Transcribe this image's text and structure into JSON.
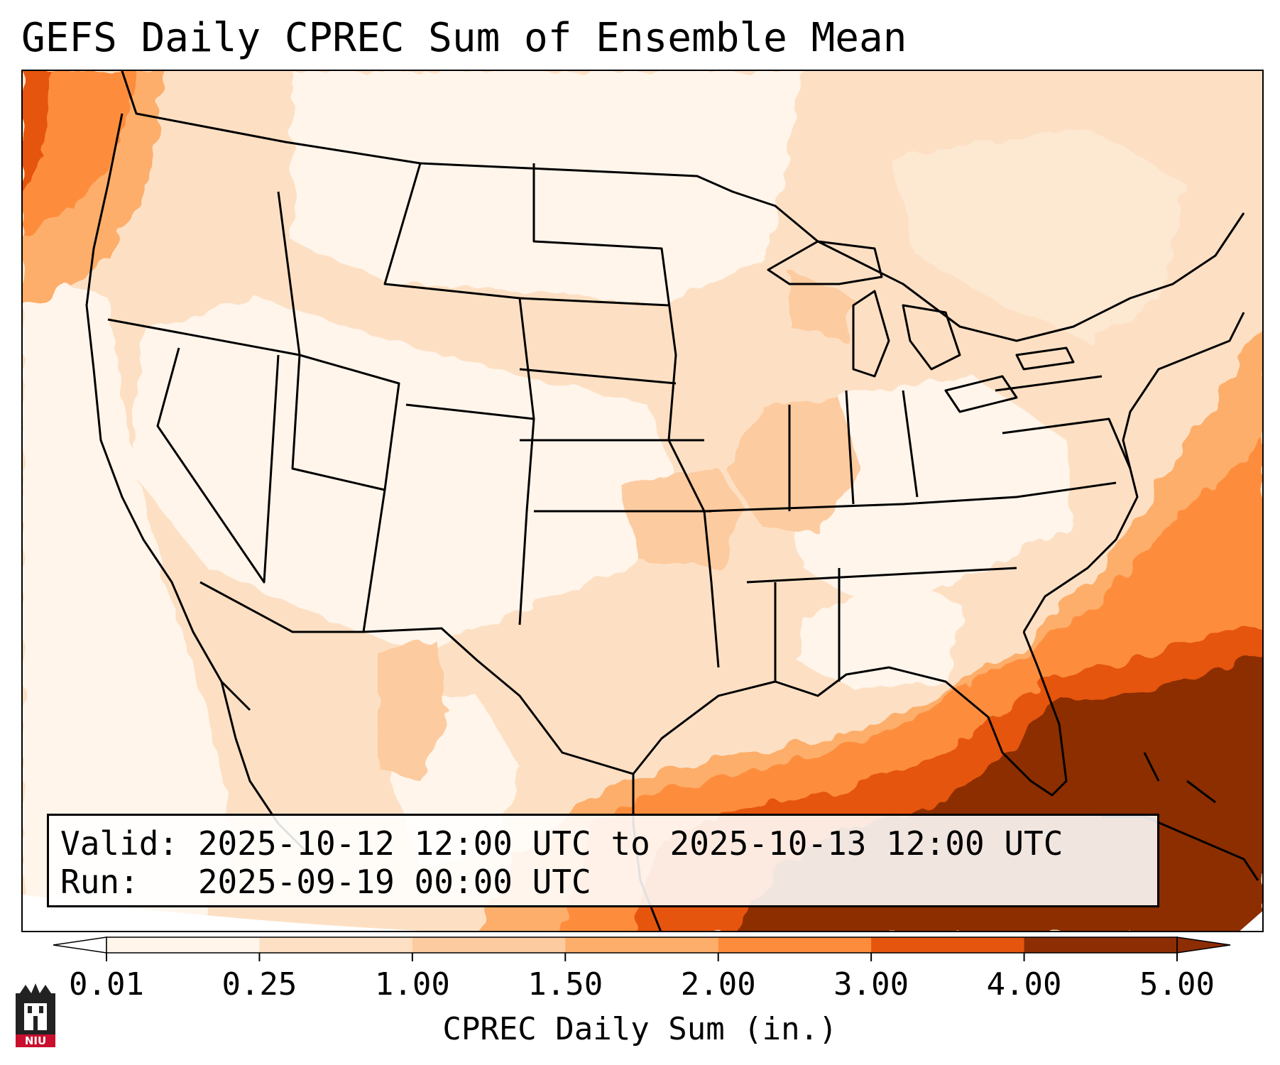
{
  "title": "GEFS Daily CPREC Sum of Ensemble Mean",
  "info": {
    "valid": "Valid: 2025-10-12 12:00 UTC to 2025-10-13 12:00 UTC",
    "run": "Run:   2025-09-19 00:00 UTC"
  },
  "colorbar": {
    "label": "CPREC Daily Sum (in.)",
    "ticks": [
      "0.01",
      "0.25",
      "1.00",
      "1.50",
      "2.00",
      "3.00",
      "4.00",
      "5.00"
    ],
    "colors": [
      "#fff5eb",
      "#fde0c4",
      "#fdcba0",
      "#fdae6b",
      "#fd8d3c",
      "#e6550d",
      "#8c2d04"
    ]
  },
  "map": {
    "background_color": "#ffffff",
    "boundary_color": "#000000"
  },
  "logo": {
    "text": "NIU",
    "color": "#c8102e"
  }
}
